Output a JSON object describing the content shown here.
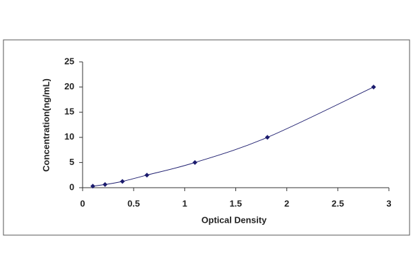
{
  "chart_data": {
    "type": "scatter",
    "x_label": "Optical Density",
    "y_label": "Concentration(ng/mL)",
    "x": [
      0.1,
      0.22,
      0.39,
      0.63,
      1.1,
      1.81,
      2.85
    ],
    "values": [
      0.312,
      0.625,
      1.25,
      2.5,
      5,
      10,
      20
    ],
    "color": "#1c1c6e",
    "trendline": true,
    "xlim": [
      0,
      3
    ],
    "xticks": [
      0,
      0.5,
      1,
      1.5,
      2,
      2.5,
      3
    ],
    "ylim": [
      0,
      25
    ],
    "yticks": [
      0,
      5,
      10,
      15,
      20,
      25
    ]
  }
}
